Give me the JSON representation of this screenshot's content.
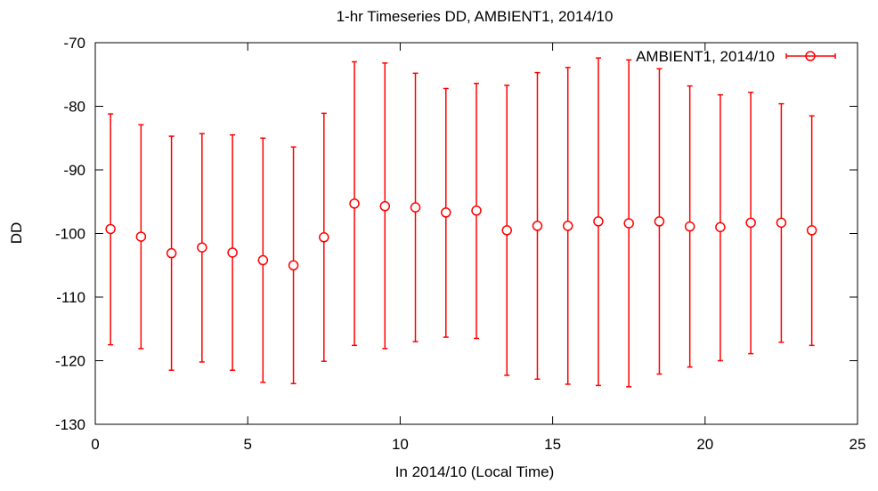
{
  "chart_data": {
    "type": "scatter",
    "title": "1-hr Timeseries DD, AMBIENT1, 2014/10",
    "xlabel": "In 2014/10 (Local Time)",
    "ylabel": "DD",
    "xlim": [
      0,
      25
    ],
    "ylim": [
      -130,
      -70
    ],
    "xticks": [
      0,
      5,
      10,
      15,
      20,
      25
    ],
    "yticks": [
      -130,
      -120,
      -110,
      -100,
      -90,
      -80,
      -70
    ],
    "grid": false,
    "legend_position": "top-right",
    "series": [
      {
        "name": "AMBIENT1, 2014/10",
        "color": "#ff0000",
        "marker": "circle",
        "error_bars": true,
        "x": [
          0.5,
          1.5,
          2.5,
          3.5,
          4.5,
          5.5,
          6.5,
          7.5,
          8.5,
          9.5,
          10.5,
          11.5,
          12.5,
          13.5,
          14.5,
          15.5,
          16.5,
          17.5,
          18.5,
          19.5,
          20.5,
          21.5,
          22.5,
          23.5
        ],
        "y": [
          -99.3,
          -100.5,
          -103.1,
          -102.2,
          -103.0,
          -104.2,
          -105.0,
          -100.6,
          -95.3,
          -95.7,
          -95.9,
          -96.7,
          -96.4,
          -99.5,
          -98.8,
          -98.8,
          -98.1,
          -98.4,
          -98.1,
          -98.9,
          -99.0,
          -98.3,
          -98.3,
          -99.5
        ],
        "y_low": [
          -117.5,
          -118.1,
          -121.5,
          -120.2,
          -121.5,
          -123.4,
          -123.6,
          -120.1,
          -117.6,
          -118.1,
          -117.0,
          -116.3,
          -116.5,
          -122.3,
          -122.9,
          -123.7,
          -123.9,
          -124.1,
          -122.1,
          -121.0,
          -120.0,
          -118.9,
          -117.1,
          -117.6
        ],
        "y_high": [
          -81.2,
          -82.9,
          -84.7,
          -84.3,
          -84.5,
          -85.0,
          -86.4,
          -81.1,
          -73.0,
          -73.2,
          -74.8,
          -77.2,
          -76.4,
          -76.7,
          -74.7,
          -73.9,
          -72.4,
          -72.7,
          -74.1,
          -76.8,
          -78.2,
          -77.8,
          -79.6,
          -81.5
        ]
      }
    ]
  }
}
